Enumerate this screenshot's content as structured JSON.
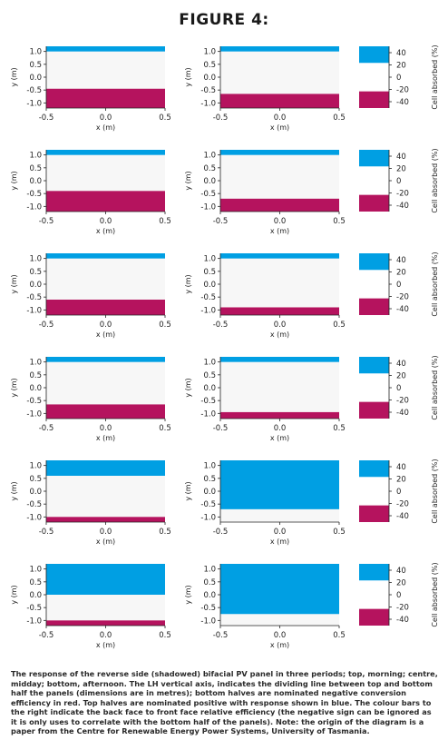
{
  "figure_title": "FIGURE 4:",
  "caption": "The response of the reverse side (shadowed) bifacial PV panel in three periods; top, morning; centre, midday; bottom, afternoon. The LH vertical axis, indicates the dividing line between top and bottom half the panels (dimensions are in metres); bottom halves are nominated negative conversion efficiency in red. Top halves are nominated positive with response shown in blue. The colour bars to the right indicate the back face to front face relative efficiency (the negative sign can be ignored as it is only uses to correlate with the bottom half of the panels). Note: the origin of the diagram is a paper from the Centre for Renewable Energy Power Systems, University of Tasmania.",
  "colors": {
    "positive": "#009fe3",
    "negative": "#b5135e",
    "panel_bg": "#f7f7f7",
    "axis": "#222222"
  },
  "axes": {
    "xlabel": "x (m)",
    "ylabel": "y (m)",
    "xticks": [
      -0.5,
      0.0,
      0.5
    ],
    "xtick_labels": [
      "-0.5",
      "0.0",
      "0.5"
    ],
    "yticks": [
      1.0,
      0.5,
      0.0,
      -0.5,
      -1.0
    ],
    "ytick_labels": [
      "1.0",
      "0.5",
      "0.0",
      "-0.5",
      "-1.0"
    ],
    "xlim": [
      -0.5,
      0.5
    ],
    "ylim": [
      -1.2,
      1.2
    ]
  },
  "colorbar": {
    "label": "Cell absorbed (%)",
    "ticks": [
      40,
      20,
      0,
      -20,
      -40
    ],
    "tick_labels": [
      "40",
      "20",
      "0",
      "-20",
      "-40"
    ]
  },
  "chart_data": [
    {
      "type": "heatmap",
      "row": 1,
      "column": 1,
      "blue_y": [
        1.0,
        1.2
      ],
      "red_y": [
        -1.2,
        -0.45
      ]
    },
    {
      "type": "heatmap",
      "row": 1,
      "column": 2,
      "blue_y": [
        1.0,
        1.2
      ],
      "red_y": [
        -1.2,
        -0.65
      ]
    },
    {
      "type": "heatmap",
      "row": 2,
      "column": 1,
      "blue_y": [
        1.0,
        1.2
      ],
      "red_y": [
        -1.2,
        -0.4
      ]
    },
    {
      "type": "heatmap",
      "row": 2,
      "column": 2,
      "blue_y": [
        1.0,
        1.2
      ],
      "red_y": [
        -1.2,
        -0.7
      ]
    },
    {
      "type": "heatmap",
      "row": 3,
      "column": 1,
      "blue_y": [
        1.0,
        1.2
      ],
      "red_y": [
        -1.2,
        -0.6
      ]
    },
    {
      "type": "heatmap",
      "row": 3,
      "column": 2,
      "blue_y": [
        1.0,
        1.2
      ],
      "red_y": [
        -1.2,
        -0.9
      ]
    },
    {
      "type": "heatmap",
      "row": 4,
      "column": 1,
      "blue_y": [
        1.0,
        1.2
      ],
      "red_y": [
        -1.2,
        -0.65
      ]
    },
    {
      "type": "heatmap",
      "row": 4,
      "column": 2,
      "blue_y": [
        1.0,
        1.2
      ],
      "red_y": [
        -1.2,
        -0.95
      ]
    },
    {
      "type": "heatmap",
      "row": 5,
      "column": 1,
      "blue_y": [
        0.6,
        1.2
      ],
      "red_y": [
        -1.2,
        -1.0
      ]
    },
    {
      "type": "heatmap",
      "row": 5,
      "column": 2,
      "blue_y": [
        -0.7,
        1.2
      ],
      "red_y": null
    },
    {
      "type": "heatmap",
      "row": 6,
      "column": 1,
      "blue_y": [
        0.0,
        1.2
      ],
      "red_y": [
        -1.2,
        -1.0
      ]
    },
    {
      "type": "heatmap",
      "row": 6,
      "column": 2,
      "blue_y": [
        -0.75,
        1.2
      ],
      "red_y": null
    }
  ]
}
